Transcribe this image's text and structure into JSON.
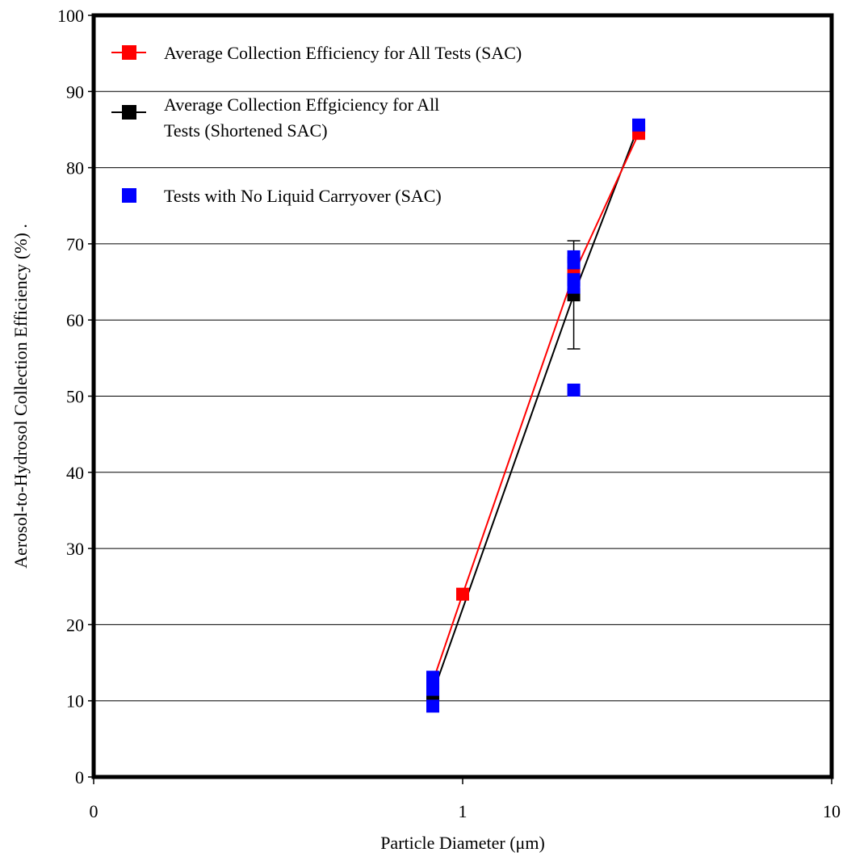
{
  "chart_data": {
    "type": "scatter",
    "xlabel": "Particle Diameter (μm)",
    "ylabel": "Aerosol-to-Hydrosol Collection Efficiency (%) .",
    "x_scale": "log",
    "xlim": [
      0.1,
      10
    ],
    "ylim": [
      0,
      100
    ],
    "x_ticks": [
      {
        "value": 0.1,
        "label": "0"
      },
      {
        "value": 1,
        "label": "1"
      },
      {
        "value": 10,
        "label": "10"
      }
    ],
    "y_ticks": [
      0,
      10,
      20,
      30,
      40,
      50,
      60,
      70,
      80,
      90,
      100
    ],
    "grid": "horizontal",
    "legend_position": "top-left",
    "series": [
      {
        "name": "Average Collection Efficiency for All Tests (SAC)",
        "color": "#ff0000",
        "marker": "square",
        "line": true,
        "points": [
          {
            "x": 0.83,
            "y": 12.5
          },
          {
            "x": 1.0,
            "y": 24.0
          },
          {
            "x": 2.0,
            "y": 66.0
          },
          {
            "x": 3.0,
            "y": 84.5
          }
        ]
      },
      {
        "name": "Average Collection Effgiciency for All Tests (Shortened SAC)",
        "color": "#000000",
        "marker": "square",
        "line": true,
        "points": [
          {
            "x": 0.83,
            "y": 11.0,
            "err_low": 10.2,
            "err_high": 12.0
          },
          {
            "x": 2.0,
            "y": 63.3,
            "err_low": 56.2,
            "err_high": 70.4
          },
          {
            "x": 3.0,
            "y": 85.5
          }
        ]
      },
      {
        "name": "Tests with No Liquid Carryover (SAC)",
        "color": "#0000ff",
        "marker": "square",
        "line": false,
        "points": [
          {
            "x": 0.83,
            "y": 9.3
          },
          {
            "x": 0.83,
            "y": 11.5
          },
          {
            "x": 0.83,
            "y": 12.3
          },
          {
            "x": 0.83,
            "y": 13.1
          },
          {
            "x": 2.0,
            "y": 50.8
          },
          {
            "x": 2.0,
            "y": 64.3
          },
          {
            "x": 2.0,
            "y": 65.3
          },
          {
            "x": 2.0,
            "y": 67.5
          },
          {
            "x": 2.0,
            "y": 68.3
          },
          {
            "x": 3.0,
            "y": 85.6
          }
        ]
      }
    ]
  }
}
